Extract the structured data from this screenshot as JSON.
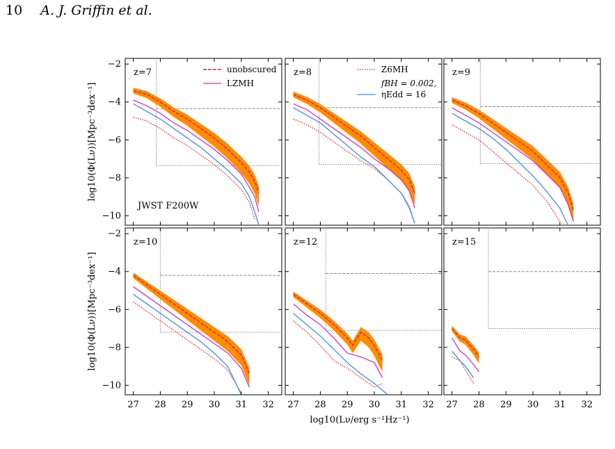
{
  "header": {
    "page_number": "10",
    "authors": "A. J. Griffin et al."
  },
  "figure": {
    "xlabel": "log10(Lν/erg s⁻¹Hz⁻¹)",
    "ylabel": "log10(Φ(Lν))[Mpc⁻³dex⁻¹]",
    "filter_label": "JWST F200W",
    "legend": {
      "unobscured": "unobscured",
      "lzmh": "LZMH",
      "z6mh": "Z6MH",
      "fbh_line1": "fBH = 0.002,",
      "fbh_line2": "ηEdd = 16"
    },
    "colors": {
      "unobscured": "#d62728",
      "band": "#ff8c00",
      "lzmh": "#c832c8",
      "z6mh": "#e02020",
      "fbh": "#3a8fe0",
      "limit": "#888888"
    }
  },
  "chart_data": [
    {
      "type": "line",
      "title": "z=7",
      "xlim": [
        26.7,
        32.5
      ],
      "ylim": [
        -10.5,
        -1.7
      ],
      "x_ticks": [
        "27",
        "28",
        "29",
        "30",
        "31",
        "32"
      ],
      "y_ticks": [
        "-2",
        "-4",
        "-6",
        "-8",
        "-10"
      ],
      "survey_limits": {
        "x_limit": 27.85,
        "phi_bright": -4.35,
        "phi_faint": -7.35
      },
      "series": [
        {
          "name": "unobscured",
          "x": [
            27.0,
            27.5,
            28.0,
            28.5,
            29.0,
            29.5,
            30.0,
            30.5,
            31.0,
            31.3,
            31.5,
            31.65
          ],
          "y": [
            -3.4,
            -3.6,
            -4.0,
            -4.5,
            -4.9,
            -5.4,
            -5.9,
            -6.5,
            -7.2,
            -7.7,
            -8.2,
            -8.8
          ]
        },
        {
          "name": "LZMH",
          "x": [
            27.0,
            27.5,
            28.0,
            28.5,
            29.0,
            29.5,
            30.0,
            30.5,
            31.0,
            31.3,
            31.5,
            31.65
          ],
          "y": [
            -3.9,
            -4.2,
            -4.6,
            -5.1,
            -5.5,
            -6.0,
            -6.5,
            -7.1,
            -7.8,
            -8.5,
            -9.0,
            -9.8
          ]
        },
        {
          "name": "Z6MH",
          "x": [
            27.0,
            27.5,
            28.0,
            28.5,
            29.0,
            29.5,
            30.0,
            30.5,
            31.0,
            31.3,
            31.5
          ],
          "y": [
            -4.8,
            -5.0,
            -5.4,
            -5.9,
            -6.3,
            -6.8,
            -7.3,
            -7.9,
            -8.6,
            -9.3,
            -10.2
          ]
        },
        {
          "name": "fBH = 0.002, ηEdd = 16",
          "x": [
            27.0,
            27.5,
            28.0,
            28.5,
            29.0,
            29.5,
            30.0,
            30.5,
            31.0,
            31.3,
            31.5,
            31.65
          ],
          "y": [
            -4.1,
            -4.5,
            -4.9,
            -5.4,
            -5.9,
            -6.4,
            -7.0,
            -7.6,
            -8.3,
            -9.0,
            -9.8,
            -10.5
          ]
        }
      ]
    },
    {
      "type": "line",
      "title": "z=8",
      "xlim": [
        26.7,
        32.5
      ],
      "ylim": [
        -10.5,
        -1.7
      ],
      "x_ticks": [
        "27",
        "28",
        "29",
        "30",
        "31",
        "32"
      ],
      "y_ticks": [
        "-2",
        "-4",
        "-6",
        "-8",
        "-10"
      ],
      "survey_limits": {
        "x_limit": 27.95,
        "phi_bright": -4.3,
        "phi_faint": -7.3
      },
      "series": [
        {
          "name": "unobscured",
          "x": [
            27.0,
            27.5,
            28.0,
            28.5,
            29.0,
            29.5,
            30.0,
            30.5,
            31.0,
            31.3,
            31.5
          ],
          "y": [
            -3.6,
            -3.9,
            -4.3,
            -4.8,
            -5.3,
            -5.8,
            -6.4,
            -7.0,
            -7.6,
            -8.1,
            -8.8
          ]
        },
        {
          "name": "LZMH",
          "x": [
            27.0,
            27.5,
            28.0,
            28.5,
            29.0,
            29.5,
            30.0,
            30.5,
            31.0,
            31.3,
            31.5
          ],
          "y": [
            -4.1,
            -4.4,
            -4.9,
            -5.4,
            -5.9,
            -6.4,
            -7.0,
            -7.5,
            -8.1,
            -8.7,
            -9.6
          ]
        },
        {
          "name": "Z6MH",
          "x": [
            27.0,
            27.5,
            28.0,
            28.5,
            29.0,
            29.5,
            30.0,
            30.5,
            31.0,
            31.3,
            31.5
          ],
          "y": [
            -4.9,
            -5.2,
            -5.6,
            -6.1,
            -6.6,
            -7.1,
            -7.5,
            -8.1,
            -8.8,
            -9.5,
            -10.4
          ]
        },
        {
          "name": "fBH = 0.002, ηEdd = 16",
          "x": [
            27.0,
            27.5,
            28.0,
            28.5,
            29.0,
            29.5,
            30.0,
            30.5,
            31.0,
            31.3,
            31.5
          ],
          "y": [
            -4.3,
            -4.7,
            -5.1,
            -5.7,
            -6.3,
            -6.9,
            -7.4,
            -8.1,
            -8.8,
            -9.6,
            -10.4
          ]
        }
      ]
    },
    {
      "type": "line",
      "title": "z=9",
      "xlim": [
        26.7,
        32.5
      ],
      "ylim": [
        -10.5,
        -1.7
      ],
      "x_ticks": [
        "27",
        "28",
        "29",
        "30",
        "31",
        "32"
      ],
      "y_ticks": [
        "-2",
        "-4",
        "-6",
        "-8",
        "-10"
      ],
      "survey_limits": {
        "x_limit": 28.05,
        "phi_bright": -4.25,
        "phi_faint": -7.25
      },
      "series": [
        {
          "name": "unobscured",
          "x": [
            27.0,
            27.5,
            28.0,
            28.5,
            29.0,
            29.5,
            30.0,
            30.5,
            31.0,
            31.3,
            31.5
          ],
          "y": [
            -3.9,
            -4.2,
            -4.6,
            -5.1,
            -5.6,
            -6.1,
            -6.6,
            -7.3,
            -8.0,
            -8.8,
            -9.7
          ]
        },
        {
          "name": "LZMH",
          "x": [
            27.0,
            27.5,
            28.0,
            28.5,
            29.0,
            29.5,
            30.0,
            30.5,
            31.0,
            31.3,
            31.5
          ],
          "y": [
            -4.3,
            -4.7,
            -5.1,
            -5.6,
            -6.1,
            -6.6,
            -7.1,
            -7.8,
            -8.5,
            -9.4,
            -10.3
          ]
        },
        {
          "name": "Z6MH",
          "x": [
            27.0,
            27.5,
            28.0,
            28.5,
            29.0,
            29.5,
            30.0,
            30.5,
            31.0
          ],
          "y": [
            -5.2,
            -5.6,
            -6.0,
            -6.6,
            -7.2,
            -7.8,
            -8.4,
            -9.2,
            -10.3
          ]
        },
        {
          "name": "fBH = 0.002, ηEdd = 16",
          "x": [
            27.0,
            27.5,
            28.0,
            28.5,
            29.0,
            29.5,
            30.0,
            30.5,
            31.0,
            31.3
          ],
          "y": [
            -4.6,
            -5.0,
            -5.4,
            -5.9,
            -6.5,
            -7.2,
            -7.9,
            -8.7,
            -9.6,
            -10.5
          ]
        }
      ]
    },
    {
      "type": "line",
      "title": "z=10",
      "xlim": [
        26.7,
        32.5
      ],
      "ylim": [
        -10.5,
        -1.7
      ],
      "x_ticks": [
        "27",
        "28",
        "29",
        "30",
        "31",
        "32"
      ],
      "y_ticks": [
        "-2",
        "-4",
        "-6",
        "-8",
        "-10"
      ],
      "survey_limits": {
        "x_limit": 28.0,
        "phi_bright": -4.2,
        "phi_faint": -7.2
      },
      "series": [
        {
          "name": "unobscured",
          "x": [
            27.0,
            27.5,
            28.0,
            28.5,
            29.0,
            29.5,
            30.0,
            30.5,
            31.0,
            31.3
          ],
          "y": [
            -4.2,
            -4.7,
            -5.2,
            -5.7,
            -6.2,
            -6.7,
            -7.2,
            -7.7,
            -8.4,
            -9.4
          ]
        },
        {
          "name": "LZMH",
          "x": [
            27.0,
            27.5,
            28.0,
            28.5,
            29.0,
            29.5,
            30.0,
            30.5,
            31.0,
            31.3
          ],
          "y": [
            -4.8,
            -5.3,
            -5.8,
            -6.3,
            -6.8,
            -7.3,
            -7.8,
            -8.3,
            -9.1,
            -10.1
          ]
        },
        {
          "name": "Z6MH",
          "x": [
            27.0,
            27.5,
            28.0,
            28.5,
            29.0,
            29.5,
            30.0,
            30.5,
            31.0
          ],
          "y": [
            -5.6,
            -6.1,
            -6.6,
            -7.1,
            -7.6,
            -8.1,
            -8.6,
            -9.2,
            -10.4
          ]
        },
        {
          "name": "fBH = 0.002, ηEdd = 16",
          "x": [
            27.0,
            27.5,
            28.0,
            28.5,
            29.0,
            29.5,
            30.0,
            30.5,
            31.0
          ],
          "y": [
            -5.2,
            -5.7,
            -6.2,
            -6.7,
            -7.2,
            -7.7,
            -8.3,
            -9.0,
            -10.5
          ]
        }
      ]
    },
    {
      "type": "line",
      "title": "z=12",
      "xlim": [
        26.7,
        32.5
      ],
      "ylim": [
        -10.5,
        -1.7
      ],
      "x_ticks": [
        "27",
        "28",
        "29",
        "30",
        "31",
        "32"
      ],
      "y_ticks": [
        "-2",
        "-4",
        "-6",
        "-8",
        "-10"
      ],
      "survey_limits": {
        "x_limit": 28.2,
        "phi_bright": -4.1,
        "phi_faint": -7.1
      },
      "series": [
        {
          "name": "unobscured",
          "x": [
            27.0,
            27.5,
            28.0,
            28.5,
            29.0,
            29.2,
            29.5,
            29.8,
            30.0,
            30.3
          ],
          "y": [
            -5.2,
            -5.7,
            -6.2,
            -6.8,
            -7.5,
            -7.9,
            -7.2,
            -7.5,
            -7.9,
            -8.7
          ]
        },
        {
          "name": "LZMH",
          "x": [
            27.0,
            27.5,
            28.0,
            28.5,
            29.0,
            29.5,
            30.0,
            30.3
          ],
          "y": [
            -5.7,
            -6.3,
            -6.8,
            -7.5,
            -8.3,
            -8.5,
            -8.8,
            -9.6
          ]
        },
        {
          "name": "Z6MH",
          "x": [
            27.0,
            27.5,
            28.0,
            28.5,
            29.0,
            29.5,
            30.0,
            30.3
          ],
          "y": [
            -6.6,
            -7.2,
            -7.9,
            -8.7,
            -9.1,
            -9.6,
            -10.1,
            -9.9
          ]
        },
        {
          "name": "fBH = 0.002, ηEdd = 16",
          "x": [
            27.0,
            27.5,
            28.0,
            28.5,
            29.0,
            29.5,
            30.0,
            30.5
          ],
          "y": [
            -6.2,
            -6.8,
            -7.4,
            -8.1,
            -8.8,
            -9.4,
            -9.9,
            -10.5
          ]
        }
      ]
    },
    {
      "type": "line",
      "title": "z=15",
      "xlim": [
        26.7,
        32.5
      ],
      "ylim": [
        -10.5,
        -1.7
      ],
      "x_ticks": [
        "27",
        "28",
        "29",
        "30",
        "31",
        "32"
      ],
      "y_ticks": [
        "-2",
        "-4",
        "-6",
        "-8",
        "-10"
      ],
      "survey_limits": {
        "x_limit": 28.35,
        "phi_bright": -4.0,
        "phi_faint": -7.0
      },
      "series": [
        {
          "name": "unobscured",
          "x": [
            27.0,
            27.3,
            27.5,
            27.8,
            28.0
          ],
          "y": [
            -7.0,
            -7.5,
            -7.6,
            -8.1,
            -8.5
          ]
        },
        {
          "name": "LZMH",
          "x": [
            27.0,
            27.3,
            27.5,
            27.8,
            28.0
          ],
          "y": [
            -7.5,
            -8.2,
            -8.4,
            -8.9,
            -9.3
          ]
        },
        {
          "name": "Z6MH",
          "x": [
            27.0,
            27.3,
            27.5,
            27.8
          ],
          "y": [
            -8.5,
            -8.7,
            -9.2,
            -9.9
          ]
        },
        {
          "name": "fBH = 0.002, ηEdd = 16",
          "x": [
            27.0,
            27.3,
            27.5,
            27.8
          ],
          "y": [
            -8.2,
            -8.7,
            -9.0,
            -9.6
          ]
        }
      ]
    }
  ]
}
